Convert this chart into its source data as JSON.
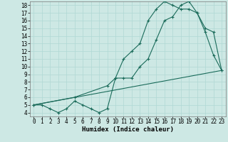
{
  "xlabel": "Humidex (Indice chaleur)",
  "background_color": "#cde8e4",
  "grid_color": "#b0d8d4",
  "line_color": "#1a6b5a",
  "xlim": [
    -0.5,
    23.5
  ],
  "ylim": [
    3.5,
    18.5
  ],
  "xticks": [
    0,
    1,
    2,
    3,
    4,
    5,
    6,
    7,
    8,
    9,
    10,
    11,
    12,
    13,
    14,
    15,
    16,
    17,
    18,
    19,
    20,
    21,
    22,
    23
  ],
  "yticks": [
    4,
    5,
    6,
    7,
    8,
    9,
    10,
    11,
    12,
    13,
    14,
    15,
    16,
    17,
    18
  ],
  "line1_x": [
    0,
    1,
    2,
    3,
    4,
    5,
    6,
    7,
    8,
    9,
    10,
    11,
    12,
    13,
    14,
    15,
    16,
    17,
    18,
    19,
    20,
    21,
    22,
    23
  ],
  "line1_y": [
    5,
    5,
    4.5,
    4,
    4.5,
    5.5,
    5,
    4.5,
    4,
    4.5,
    8.5,
    11,
    12,
    13,
    16,
    17.5,
    18.5,
    18,
    17.5,
    17.5,
    17,
    14.5,
    11.5,
    9.5
  ],
  "line2_x": [
    0,
    5,
    9,
    10,
    11,
    12,
    13,
    14,
    15,
    16,
    17,
    18,
    19,
    20,
    21,
    22,
    23
  ],
  "line2_y": [
    5,
    6,
    7.5,
    8.5,
    8.5,
    8.5,
    10,
    11,
    13.5,
    16,
    16.5,
    18,
    18.5,
    17,
    15,
    14.5,
    9.5
  ],
  "line3_x": [
    0,
    23
  ],
  "line3_y": [
    5,
    9.5
  ],
  "tick_fontsize": 5.5,
  "xlabel_fontsize": 6.5,
  "linewidth": 0.8,
  "markersize": 3.5
}
